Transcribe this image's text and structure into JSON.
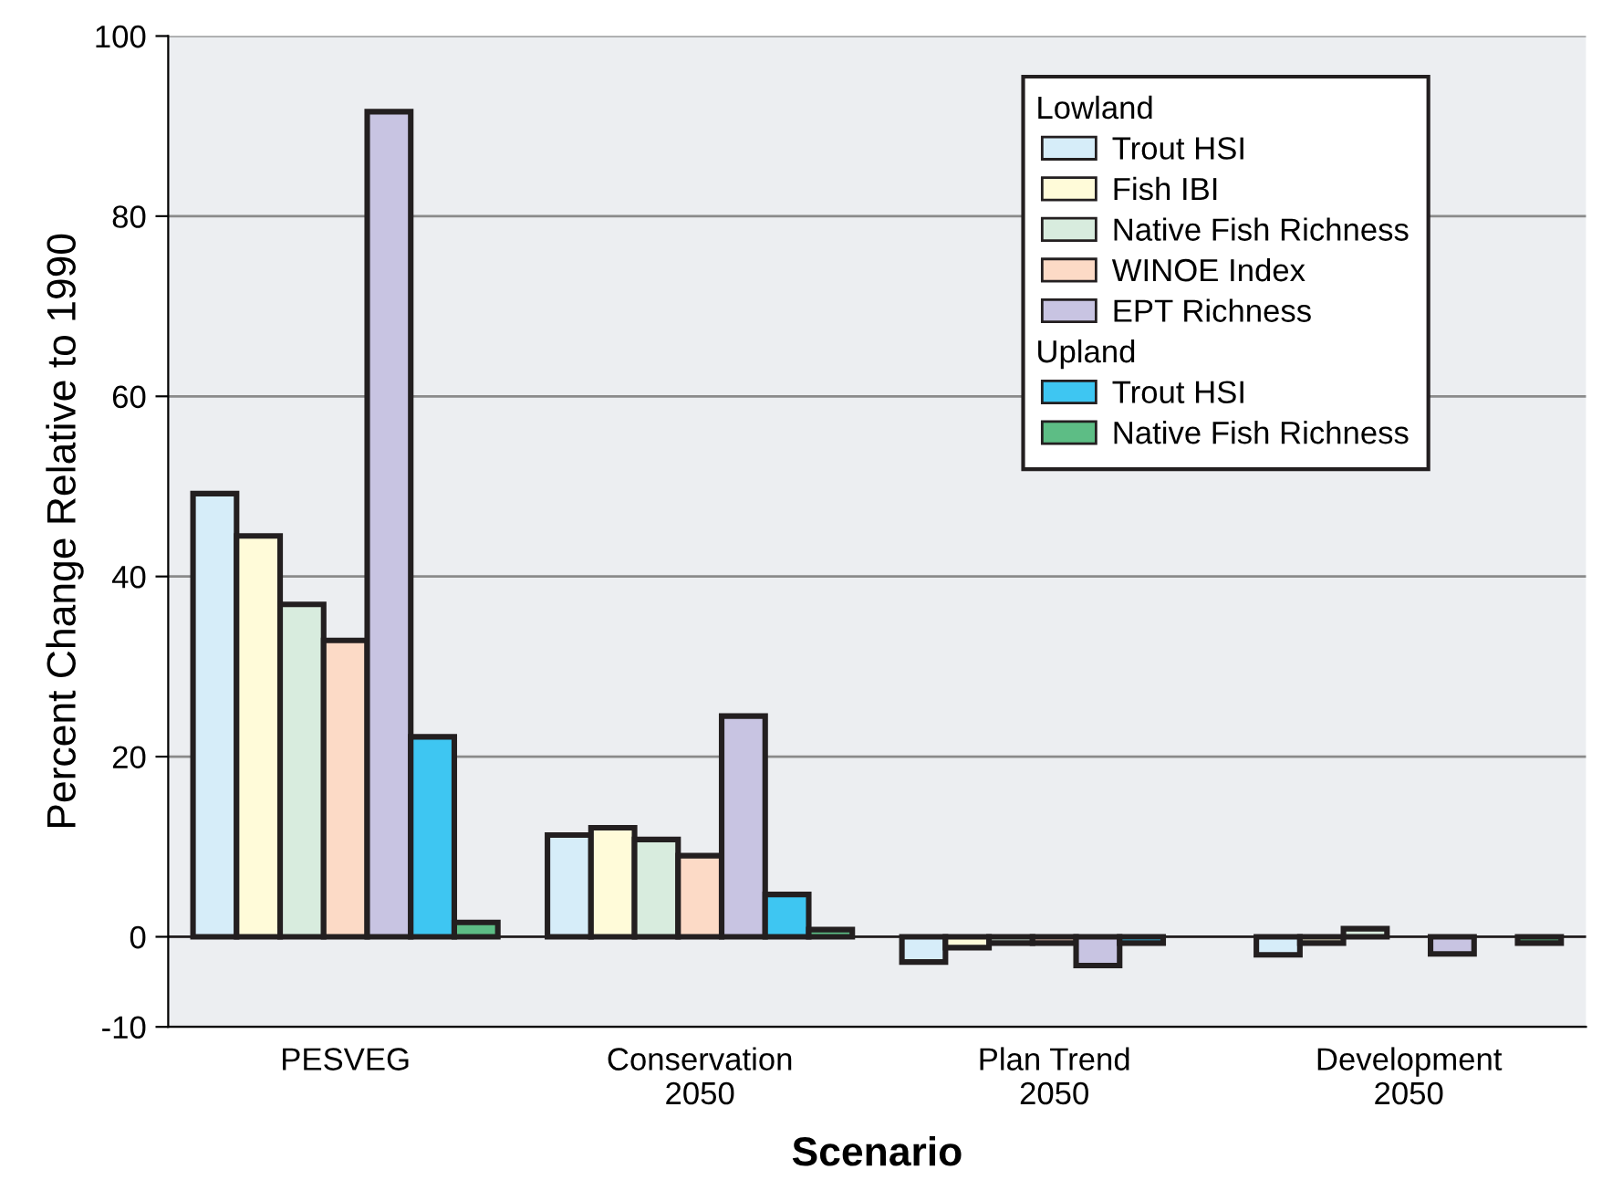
{
  "chart_data": {
    "type": "bar",
    "xlabel": "Scenario",
    "ylabel": "Percent Change Relative to 1990",
    "categories": [
      "PESVEG",
      "Conservation\n2050",
      "Plan Trend\n2050",
      "Development\n2050"
    ],
    "legend_title": [
      "Lowland",
      "Upland"
    ],
    "series": [
      {
        "name": "Trout HSI",
        "color": "#d6edf9",
        "values": [
          49.2,
          11.3,
          -2.8,
          -2.0
        ]
      },
      {
        "name": "Fish IBI",
        "color": "#fffbd9",
        "values": [
          44.5,
          12.1,
          -1.2,
          -0.7
        ]
      },
      {
        "name": "Native Fish Richness",
        "color": "#d8ecde",
        "values": [
          36.9,
          10.8,
          -0.7,
          0.9
        ]
      },
      {
        "name": "WINOE Index",
        "color": "#fcdac6",
        "values": [
          32.9,
          9.0,
          -0.7,
          null
        ]
      },
      {
        "name": "EPT Richness",
        "color": "#c8c4e2",
        "values": [
          91.6,
          24.5,
          -3.2,
          -1.9
        ]
      },
      {
        "name": "Trout HSI",
        "color": "#3ec6f2",
        "values": [
          22.2,
          4.7,
          -0.7,
          null
        ]
      },
      {
        "name": "Native Fish Richness",
        "color": "#5dbd85",
        "values": [
          1.6,
          0.8,
          null,
          -0.7
        ]
      }
    ],
    "ylim": [
      -10,
      100
    ],
    "yticks": [
      -10,
      0,
      20,
      40,
      60,
      80,
      100
    ],
    "grid": "y",
    "legend": "top right"
  }
}
